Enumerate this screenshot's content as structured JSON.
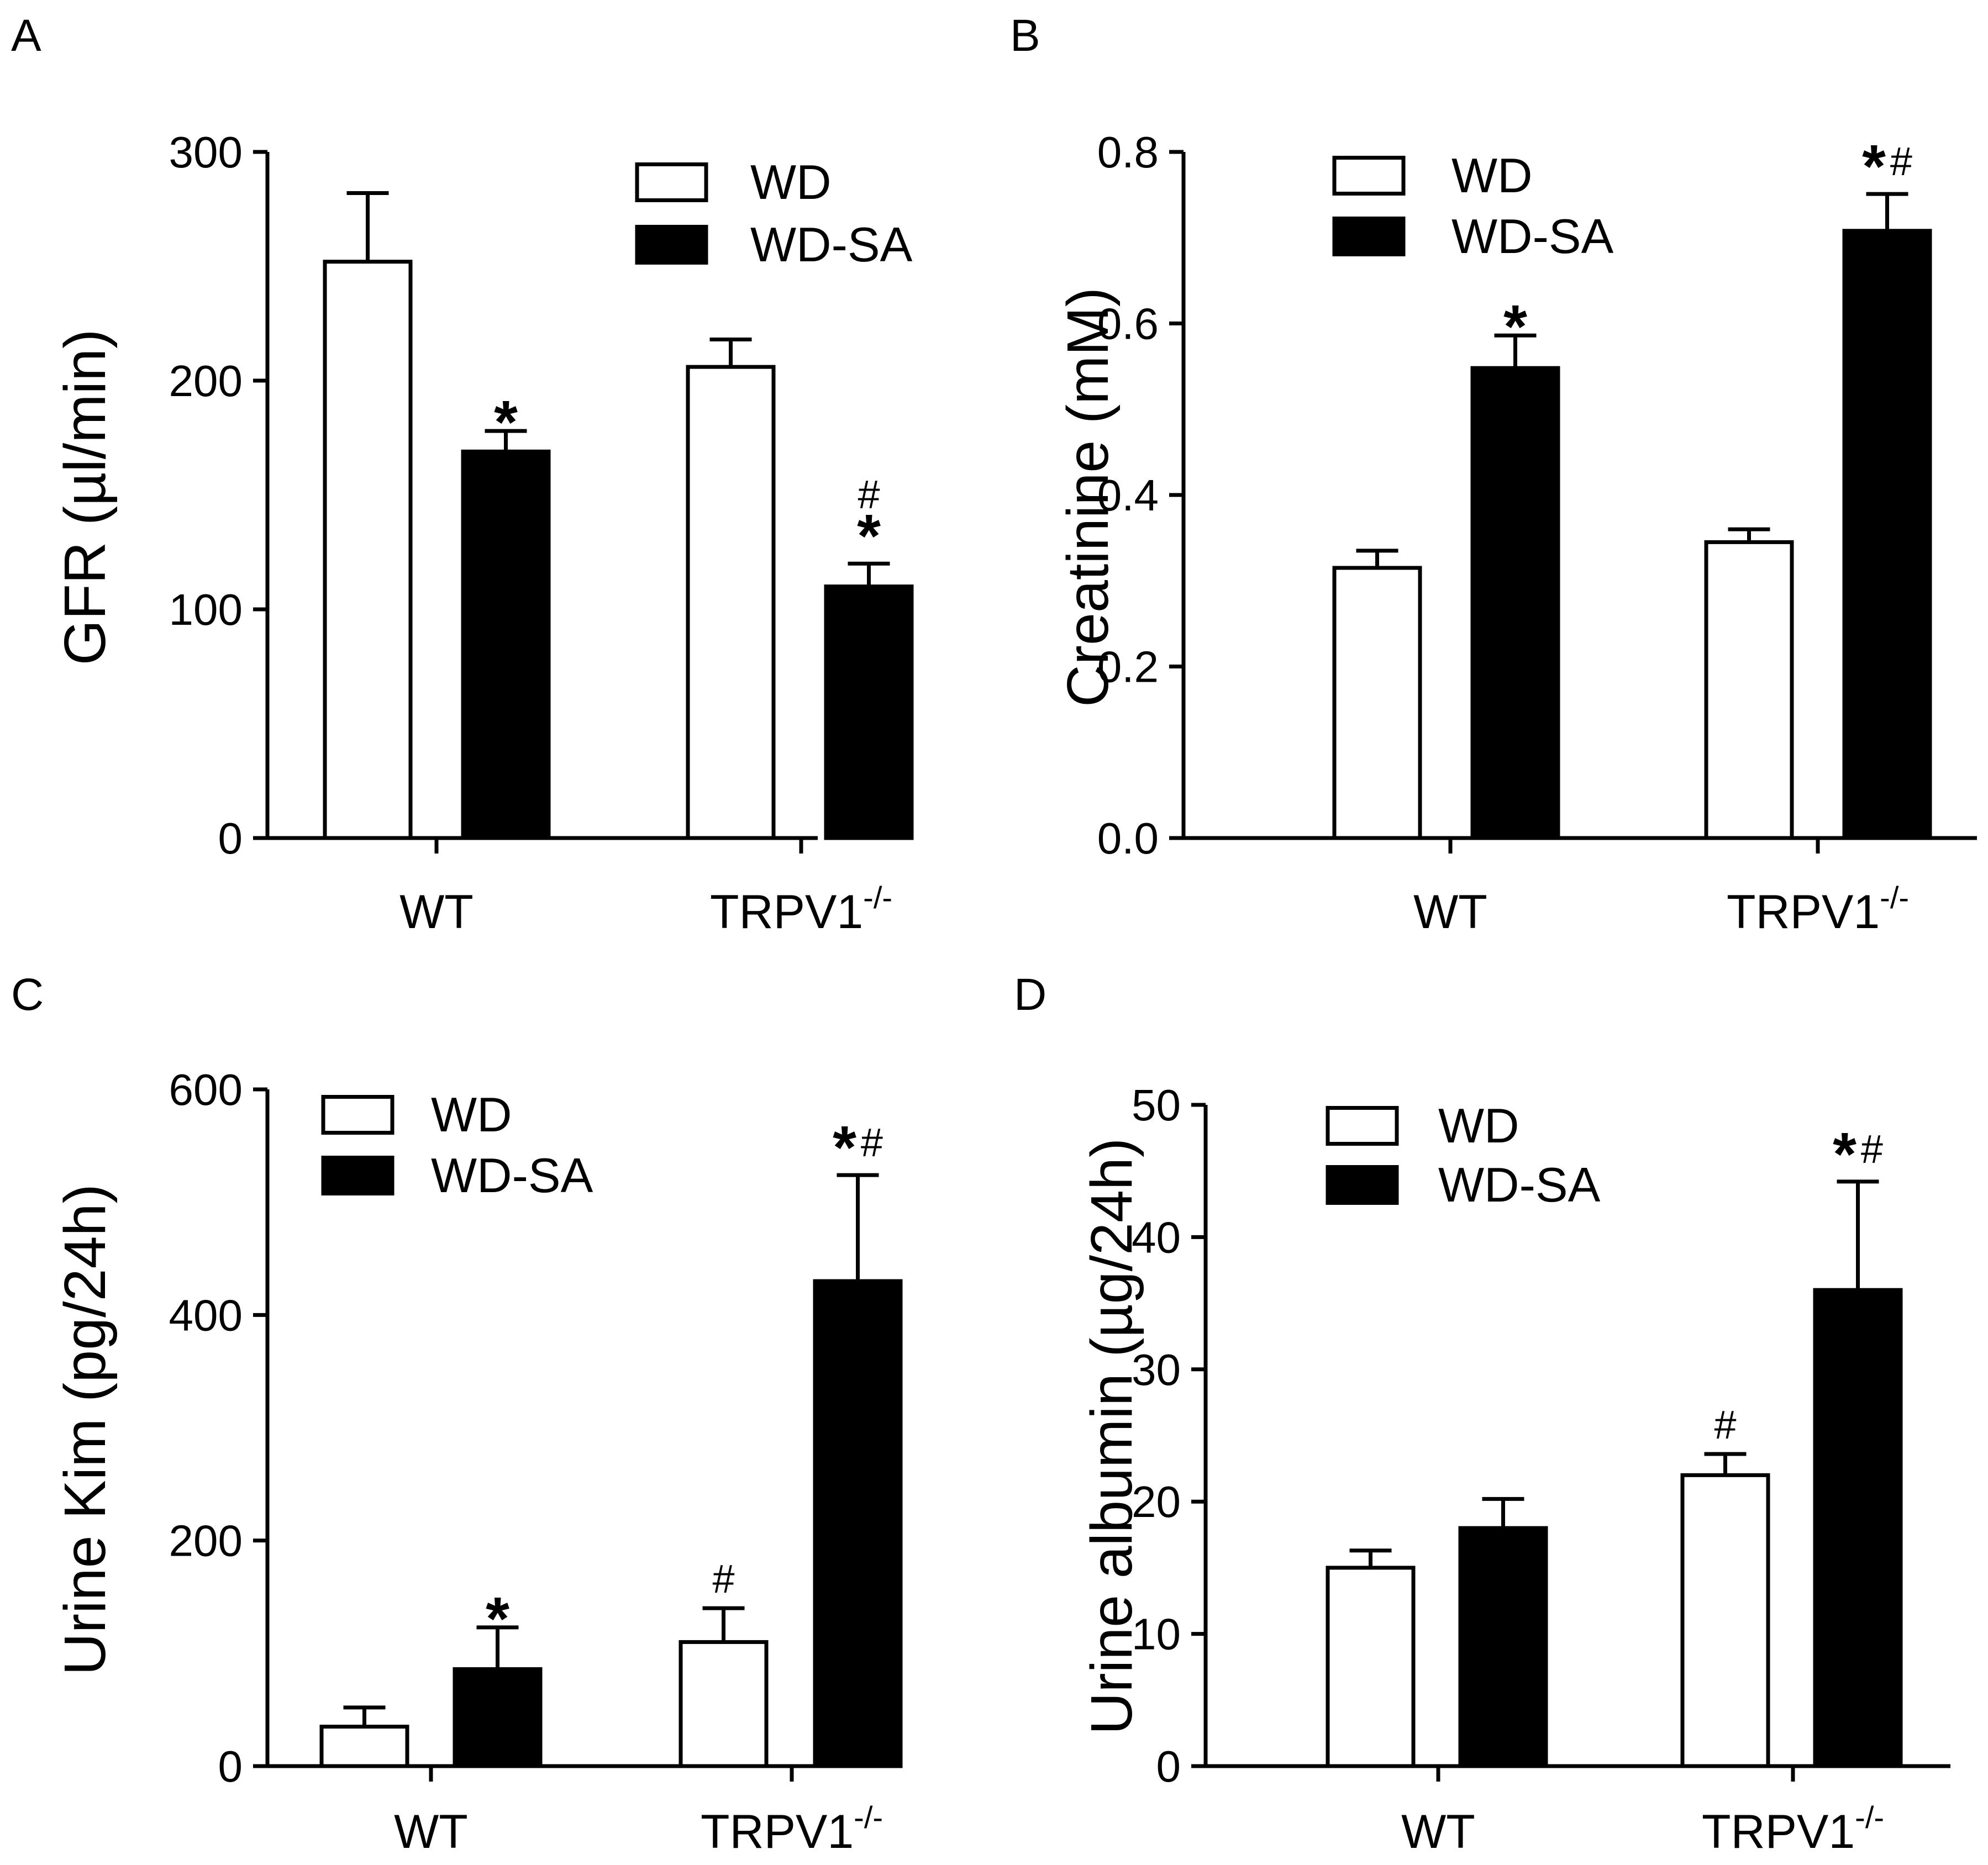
{
  "figure": {
    "legend_labels": [
      "WD",
      "WD-SA"
    ],
    "colors": {
      "WD": "#ffffff",
      "WD-SA": "#000000",
      "stroke": "#000000"
    }
  },
  "chart_data": [
    {
      "panel": "A",
      "type": "bar",
      "categories": [
        "WT",
        "TRPV1"
      ],
      "category_superscript": [
        "",
        "-/-"
      ],
      "ylabel": "GFR (µl/min)",
      "ylim": [
        0,
        300
      ],
      "yticks": [
        "0",
        "100",
        "200",
        "300"
      ],
      "ytick_values": [
        0,
        100,
        200,
        300
      ],
      "legend_position": "top-right",
      "series": [
        {
          "name": "WD",
          "values": [
            252,
            206
          ],
          "errors": [
            30,
            12
          ],
          "marks": [
            "",
            ""
          ]
        },
        {
          "name": "WD-SA",
          "values": [
            169,
            110
          ],
          "errors": [
            9,
            10
          ],
          "marks": [
            "*",
            "#/*"
          ]
        }
      ]
    },
    {
      "panel": "B",
      "type": "bar",
      "categories": [
        "WT",
        "TRPV1"
      ],
      "category_superscript": [
        "",
        "-/-"
      ],
      "ylabel": "Creatinine (mM)",
      "ylim": [
        0,
        0.8
      ],
      "yticks": [
        "0.0",
        "0.2",
        "0.4",
        "0.6",
        "0.8"
      ],
      "ytick_values": [
        0,
        0.2,
        0.4,
        0.6,
        0.8
      ],
      "legend_position": "top-left",
      "series": [
        {
          "name": "WD",
          "values": [
            0.315,
            0.345
          ],
          "errors": [
            0.02,
            0.015
          ],
          "marks": [
            "",
            ""
          ]
        },
        {
          "name": "WD-SA",
          "values": [
            0.548,
            0.708
          ],
          "errors": [
            0.038,
            0.043
          ],
          "marks": [
            "*",
            "*#"
          ]
        }
      ]
    },
    {
      "panel": "C",
      "type": "bar",
      "categories": [
        "WT",
        "TRPV1"
      ],
      "category_superscript": [
        "",
        "-/-"
      ],
      "ylabel": "Urine Kim (pg/24h)",
      "ylim": [
        0,
        600
      ],
      "yticks": [
        "0",
        "200",
        "400",
        "600"
      ],
      "ytick_values": [
        0,
        200,
        400,
        600
      ],
      "legend_position": "top-left",
      "series": [
        {
          "name": "WD",
          "values": [
            35,
            110
          ],
          "errors": [
            17,
            30
          ],
          "marks": [
            "",
            "#"
          ]
        },
        {
          "name": "WD-SA",
          "values": [
            86,
            430
          ],
          "errors": [
            37,
            94
          ],
          "marks": [
            "*",
            "*#"
          ]
        }
      ]
    },
    {
      "panel": "D",
      "type": "bar",
      "categories": [
        "WT",
        "TRPV1"
      ],
      "category_superscript": [
        "",
        "-/-"
      ],
      "ylabel": "Urine albumin (µg/24h)",
      "ylim": [
        0,
        50
      ],
      "yticks": [
        "0",
        "10",
        "20",
        "30",
        "40",
        "50"
      ],
      "ytick_values": [
        0,
        10,
        20,
        30,
        40,
        50
      ],
      "legend_position": "top-left",
      "series": [
        {
          "name": "WD",
          "values": [
            15,
            22
          ],
          "errors": [
            1.3,
            1.6
          ],
          "marks": [
            "",
            "#"
          ]
        },
        {
          "name": "WD-SA",
          "values": [
            18,
            36
          ],
          "errors": [
            2.2,
            8.2
          ],
          "marks": [
            "",
            "*#"
          ]
        }
      ]
    }
  ]
}
